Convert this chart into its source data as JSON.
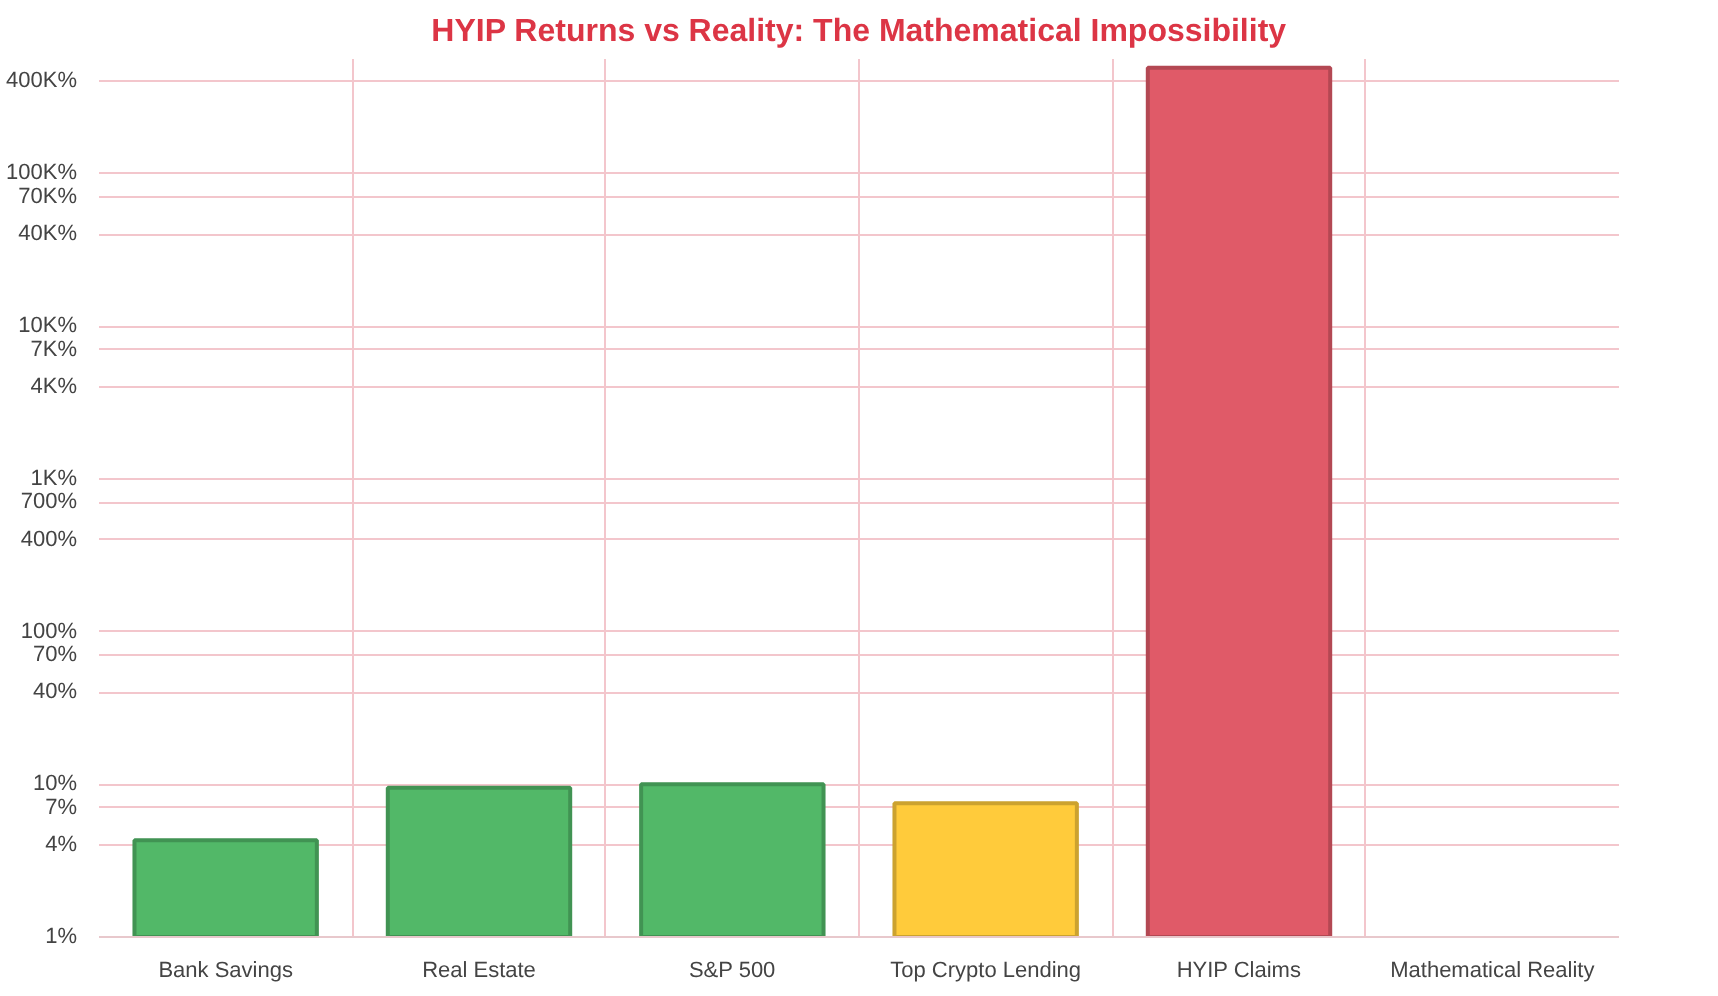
{
  "chart_data": {
    "type": "bar",
    "title": "HYIP Returns vs Reality: The Mathematical Impossibility",
    "categories": [
      "Bank Savings",
      "Real Estate",
      "S&P 500",
      "Top Crypto Lending",
      "HYIP Claims",
      "Mathematical Reality"
    ],
    "values": [
      4.3,
      9.5,
      10,
      7.5,
      490000,
      null
    ],
    "colors": [
      "#52b868",
      "#52b868",
      "#52b868",
      "#ffcb3b",
      "#e05a68",
      "#e05a68"
    ],
    "log": "y",
    "ylim": [
      1,
      560000
    ],
    "yticks": [
      {
        "value": 1,
        "label": "1%"
      },
      {
        "value": 4,
        "label": "4%"
      },
      {
        "value": 7,
        "label": "7%"
      },
      {
        "value": 10,
        "label": "10%"
      },
      {
        "value": 40,
        "label": "40%"
      },
      {
        "value": 70,
        "label": "70%"
      },
      {
        "value": 100,
        "label": "100%"
      },
      {
        "value": 400,
        "label": "400%"
      },
      {
        "value": 700,
        "label": "700%"
      },
      {
        "value": 1000,
        "label": "1K%"
      },
      {
        "value": 4000,
        "label": "4K%"
      },
      {
        "value": 7000,
        "label": "7K%"
      },
      {
        "value": 10000,
        "label": "10K%"
      },
      {
        "value": 40000,
        "label": "40K%"
      },
      {
        "value": 70000,
        "label": "70K%"
      },
      {
        "value": 100000,
        "label": "100K%"
      },
      {
        "value": 400000,
        "label": "400K%"
      }
    ],
    "grid": true
  }
}
